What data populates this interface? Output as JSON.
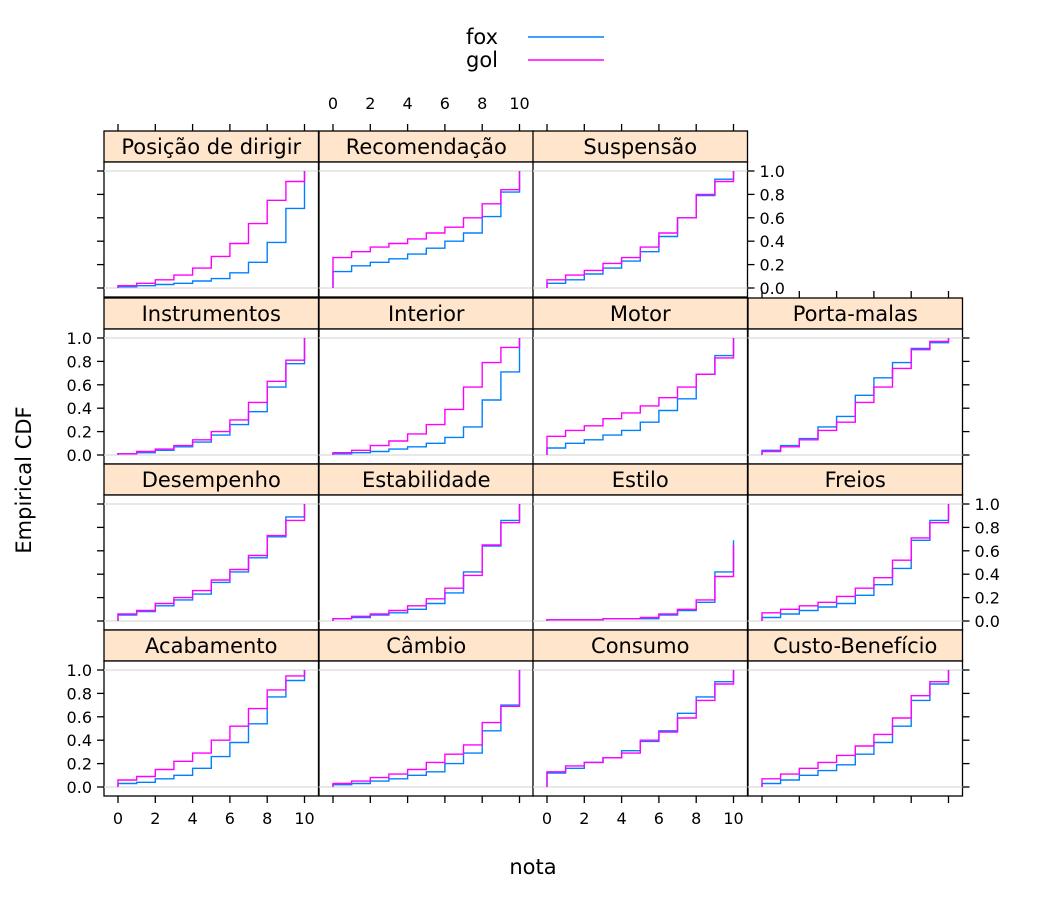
{
  "chart_data": {
    "type": "line",
    "step": true,
    "xlabel": "nota",
    "ylabel": "Empirical CDF",
    "x_ticks": [
      "0",
      "2",
      "4",
      "6",
      "8",
      "10"
    ],
    "y_ticks": [
      "0.0",
      "0.2",
      "0.4",
      "0.6",
      "0.8",
      "1.0"
    ],
    "xlim": [
      0,
      10
    ],
    "ylim": [
      0,
      1
    ],
    "grid": "horizontal reference lines at 0 and 1",
    "legend": {
      "position": "top",
      "entries": [
        {
          "name": "fox",
          "color": "#0080ff"
        },
        {
          "name": "gol",
          "color": "#ff00ff"
        }
      ]
    },
    "x": [
      0,
      1,
      2,
      3,
      4,
      5,
      6,
      7,
      8,
      9,
      10
    ],
    "panels": [
      {
        "label": "Posição de dirigir",
        "series": [
          {
            "name": "fox",
            "values": [
              0.01,
              0.02,
              0.03,
              0.04,
              0.06,
              0.08,
              0.13,
              0.22,
              0.39,
              0.68,
              1.0
            ]
          },
          {
            "name": "gol",
            "values": [
              0.02,
              0.04,
              0.07,
              0.11,
              0.17,
              0.27,
              0.38,
              0.55,
              0.75,
              0.91,
              1.0
            ]
          }
        ]
      },
      {
        "label": "Recomendação",
        "series": [
          {
            "name": "fox",
            "values": [
              0.14,
              0.19,
              0.22,
              0.25,
              0.29,
              0.34,
              0.4,
              0.47,
              0.61,
              0.82,
              1.0
            ]
          },
          {
            "name": "gol",
            "values": [
              0.26,
              0.31,
              0.35,
              0.38,
              0.42,
              0.47,
              0.52,
              0.6,
              0.72,
              0.84,
              1.0
            ]
          }
        ]
      },
      {
        "label": "Suspensão",
        "series": [
          {
            "name": "fox",
            "values": [
              0.04,
              0.07,
              0.12,
              0.17,
              0.23,
              0.31,
              0.44,
              0.6,
              0.79,
              0.93,
              1.0
            ]
          },
          {
            "name": "gol",
            "values": [
              0.07,
              0.11,
              0.15,
              0.21,
              0.26,
              0.35,
              0.47,
              0.6,
              0.8,
              0.91,
              1.0
            ]
          }
        ]
      },
      {
        "label": "Instrumentos",
        "series": [
          {
            "name": "fox",
            "values": [
              0.01,
              0.02,
              0.04,
              0.07,
              0.11,
              0.17,
              0.26,
              0.37,
              0.58,
              0.78,
              1.0
            ]
          },
          {
            "name": "gol",
            "values": [
              0.01,
              0.03,
              0.05,
              0.08,
              0.13,
              0.2,
              0.3,
              0.45,
              0.63,
              0.81,
              1.0
            ]
          }
        ]
      },
      {
        "label": "Interior",
        "series": [
          {
            "name": "fox",
            "values": [
              0.01,
              0.02,
              0.03,
              0.05,
              0.07,
              0.1,
              0.15,
              0.24,
              0.47,
              0.71,
              1.0
            ]
          },
          {
            "name": "gol",
            "values": [
              0.02,
              0.04,
              0.08,
              0.12,
              0.18,
              0.26,
              0.39,
              0.58,
              0.79,
              0.92,
              1.0
            ]
          }
        ]
      },
      {
        "label": "Motor",
        "series": [
          {
            "name": "fox",
            "values": [
              0.06,
              0.1,
              0.13,
              0.17,
              0.21,
              0.28,
              0.38,
              0.48,
              0.69,
              0.85,
              1.0
            ]
          },
          {
            "name": "gol",
            "values": [
              0.16,
              0.21,
              0.25,
              0.31,
              0.36,
              0.42,
              0.49,
              0.58,
              0.69,
              0.83,
              1.0
            ]
          }
        ]
      },
      {
        "label": "Porta-malas",
        "series": [
          {
            "name": "fox",
            "values": [
              0.04,
              0.08,
              0.14,
              0.24,
              0.33,
              0.51,
              0.66,
              0.79,
              0.91,
              0.96,
              1.0
            ]
          },
          {
            "name": "gol",
            "values": [
              0.03,
              0.07,
              0.13,
              0.21,
              0.28,
              0.45,
              0.58,
              0.74,
              0.9,
              0.97,
              1.0
            ]
          }
        ]
      },
      {
        "label": "Desempenho",
        "series": [
          {
            "name": "fox",
            "values": [
              0.05,
              0.08,
              0.13,
              0.18,
              0.23,
              0.33,
              0.42,
              0.54,
              0.72,
              0.89,
              1.0
            ]
          },
          {
            "name": "gol",
            "values": [
              0.06,
              0.09,
              0.15,
              0.2,
              0.26,
              0.35,
              0.44,
              0.56,
              0.73,
              0.86,
              1.0
            ]
          }
        ]
      },
      {
        "label": "Estabilidade",
        "series": [
          {
            "name": "fox",
            "values": [
              0.02,
              0.03,
              0.05,
              0.07,
              0.1,
              0.15,
              0.24,
              0.42,
              0.64,
              0.86,
              1.0
            ]
          },
          {
            "name": "gol",
            "values": [
              0.02,
              0.04,
              0.06,
              0.09,
              0.13,
              0.19,
              0.28,
              0.39,
              0.65,
              0.84,
              1.0
            ]
          }
        ]
      },
      {
        "label": "Estilo",
        "series": [
          {
            "name": "fox",
            "values": [
              0.01,
              0.01,
              0.01,
              0.02,
              0.02,
              0.02,
              0.05,
              0.09,
              0.16,
              0.42,
              0.69
            ]
          },
          {
            "name": "gol",
            "values": [
              0.01,
              0.01,
              0.01,
              0.02,
              0.02,
              0.03,
              0.06,
              0.1,
              0.18,
              0.38,
              0.65
            ]
          }
        ]
      },
      {
        "label": "Freios",
        "series": [
          {
            "name": "fox",
            "values": [
              0.03,
              0.06,
              0.09,
              0.12,
              0.15,
              0.22,
              0.31,
              0.45,
              0.69,
              0.86,
              1.0
            ]
          },
          {
            "name": "gol",
            "values": [
              0.07,
              0.1,
              0.13,
              0.16,
              0.21,
              0.28,
              0.37,
              0.52,
              0.71,
              0.84,
              1.0
            ]
          }
        ]
      },
      {
        "label": "Acabamento",
        "series": [
          {
            "name": "fox",
            "values": [
              0.03,
              0.04,
              0.07,
              0.1,
              0.16,
              0.26,
              0.38,
              0.54,
              0.77,
              0.91,
              1.0
            ]
          },
          {
            "name": "gol",
            "values": [
              0.06,
              0.09,
              0.15,
              0.22,
              0.29,
              0.4,
              0.52,
              0.67,
              0.83,
              0.95,
              1.0
            ]
          }
        ]
      },
      {
        "label": "Câmbio",
        "series": [
          {
            "name": "fox",
            "values": [
              0.02,
              0.03,
              0.05,
              0.07,
              0.1,
              0.13,
              0.2,
              0.29,
              0.48,
              0.7,
              1.0
            ]
          },
          {
            "name": "gol",
            "values": [
              0.03,
              0.05,
              0.08,
              0.11,
              0.15,
              0.21,
              0.28,
              0.36,
              0.55,
              0.69,
              1.0
            ]
          }
        ]
      },
      {
        "label": "Consumo",
        "series": [
          {
            "name": "fox",
            "values": [
              0.12,
              0.16,
              0.21,
              0.25,
              0.31,
              0.39,
              0.48,
              0.63,
              0.77,
              0.9,
              1.0
            ]
          },
          {
            "name": "gol",
            "values": [
              0.13,
              0.18,
              0.21,
              0.25,
              0.29,
              0.4,
              0.47,
              0.59,
              0.74,
              0.88,
              1.0
            ]
          }
        ]
      },
      {
        "label": "Custo-Benefício",
        "series": [
          {
            "name": "fox",
            "values": [
              0.03,
              0.06,
              0.1,
              0.14,
              0.19,
              0.28,
              0.38,
              0.52,
              0.74,
              0.88,
              1.0
            ]
          },
          {
            "name": "gol",
            "values": [
              0.07,
              0.11,
              0.16,
              0.21,
              0.27,
              0.35,
              0.45,
              0.59,
              0.78,
              0.9,
              1.0
            ]
          }
        ]
      }
    ]
  }
}
